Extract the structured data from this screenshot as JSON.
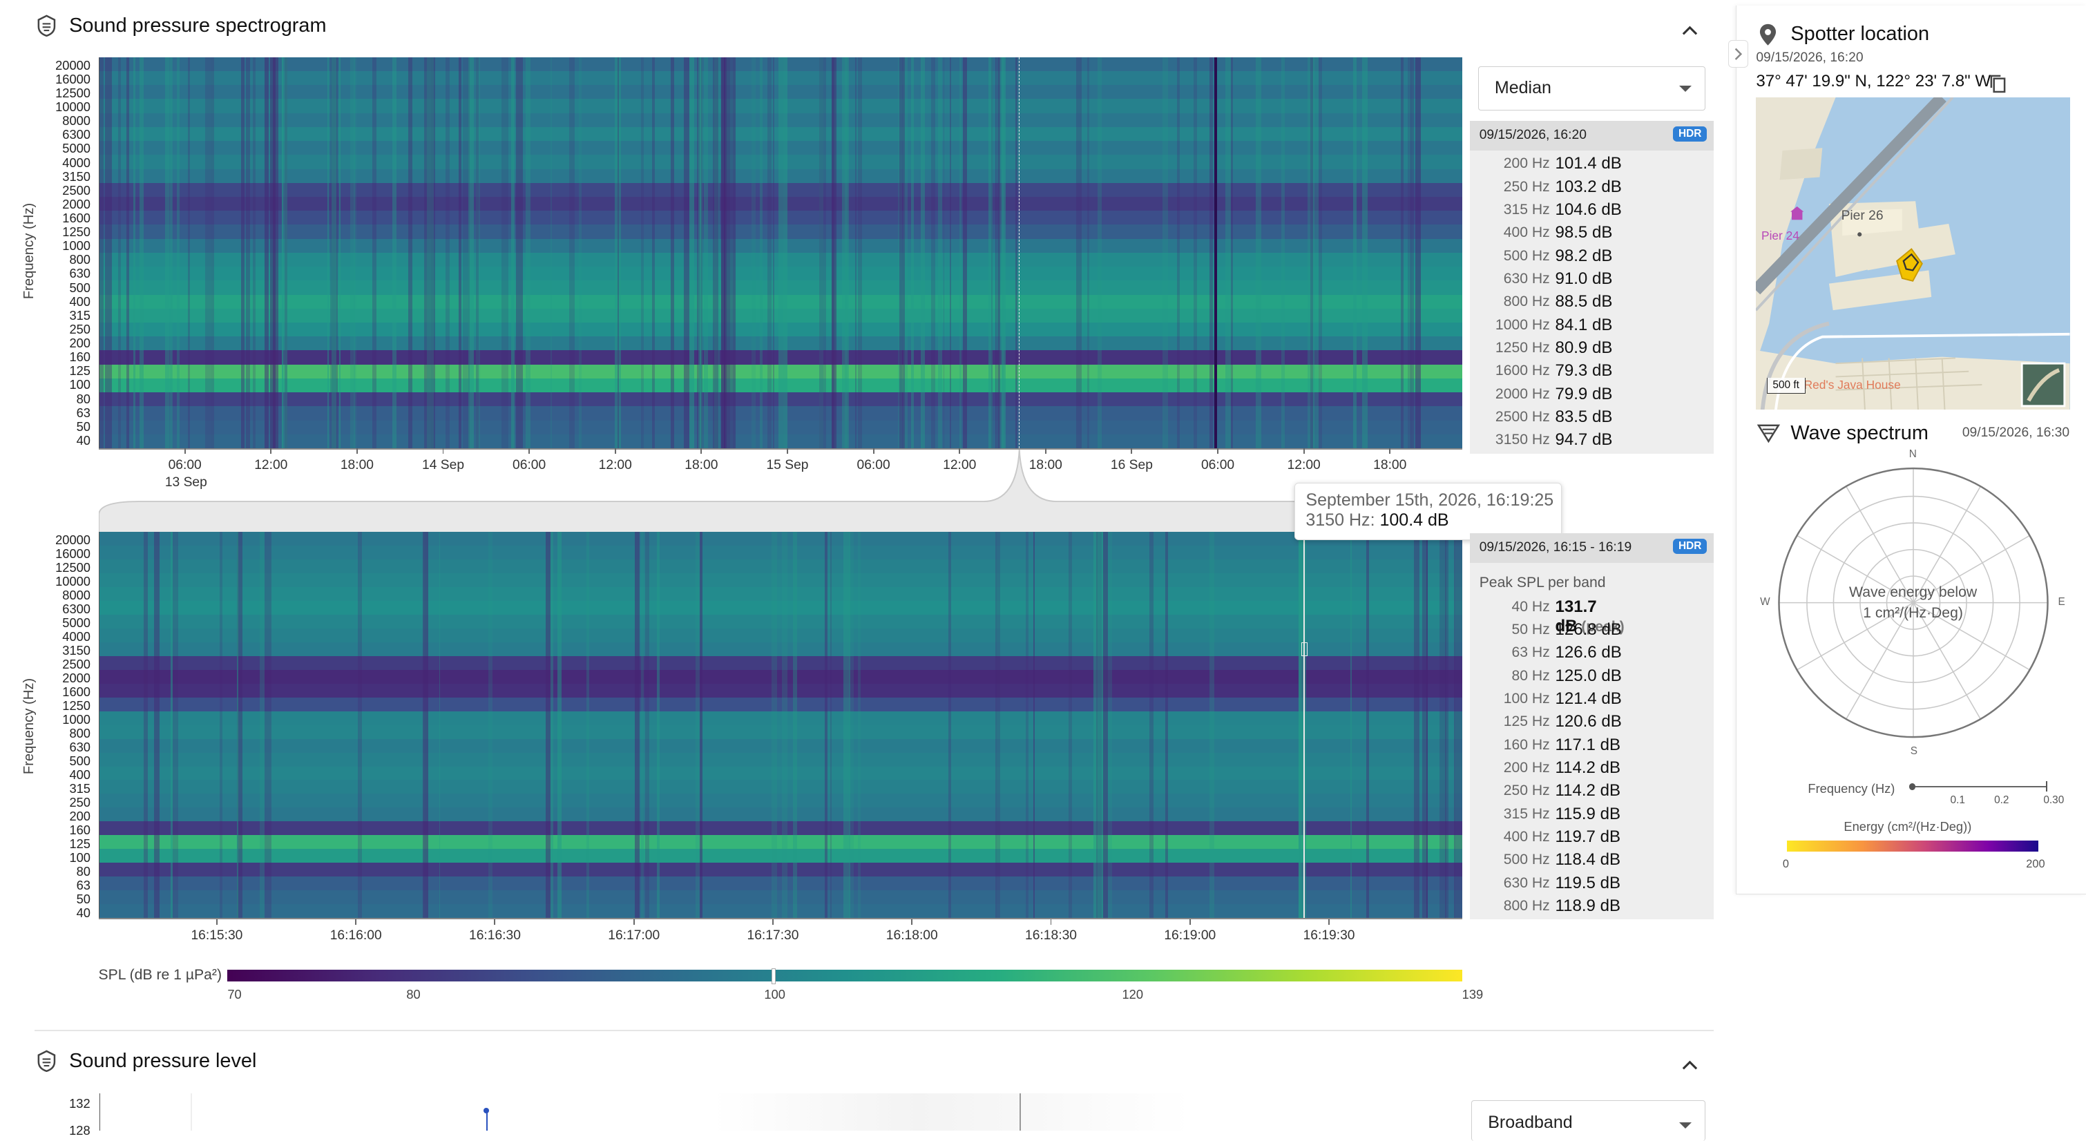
{
  "spectrogram_section": {
    "title": "Sound pressure spectrogram",
    "icon": "hydrophone-icon",
    "collapse_icon": "chevron-up-icon"
  },
  "frequency_axis_label": "Frequency (Hz)",
  "frequency_ticks": [
    "20000",
    "16000",
    "12500",
    "10000",
    "8000",
    "6300",
    "5000",
    "4000",
    "3150",
    "2500",
    "2000",
    "1600",
    "1250",
    "1000",
    "800",
    "630",
    "500",
    "400",
    "315",
    "250",
    "200",
    "160",
    "125",
    "100",
    "80",
    "63",
    "50",
    "40"
  ],
  "overview_x_ticks": [
    "06:00",
    "12:00",
    "18:00",
    "14 Sep",
    "06:00",
    "12:00",
    "18:00",
    "15 Sep",
    "06:00",
    "12:00",
    "18:00",
    "16 Sep",
    "06:00",
    "12:00",
    "18:00"
  ],
  "overview_x_sub": "13 Sep",
  "detail_x_ticks": [
    "16:15:30",
    "16:16:00",
    "16:16:30",
    "16:17:00",
    "16:17:30",
    "16:18:00",
    "16:18:30",
    "16:19:00",
    "16:19:30"
  ],
  "statistic_select": {
    "value": "Median"
  },
  "overview_panel": {
    "timestamp": "09/15/2026, 16:20",
    "badge": "HDR",
    "rows": [
      {
        "hz": "200 Hz",
        "db": "101.4 dB"
      },
      {
        "hz": "250 Hz",
        "db": "103.2 dB"
      },
      {
        "hz": "315 Hz",
        "db": "104.6 dB"
      },
      {
        "hz": "400 Hz",
        "db": "98.5 dB"
      },
      {
        "hz": "500 Hz",
        "db": "98.2 dB"
      },
      {
        "hz": "630 Hz",
        "db": "91.0 dB"
      },
      {
        "hz": "800 Hz",
        "db": "88.5 dB"
      },
      {
        "hz": "1000 Hz",
        "db": "84.1 dB"
      },
      {
        "hz": "1250 Hz",
        "db": "80.9 dB"
      },
      {
        "hz": "1600 Hz",
        "db": "79.3 dB"
      },
      {
        "hz": "2000 Hz",
        "db": "79.9 dB"
      },
      {
        "hz": "2500 Hz",
        "db": "83.5 dB"
      },
      {
        "hz": "3150 Hz",
        "db": "94.7 dB"
      }
    ]
  },
  "tooltip": {
    "date": "September 15th, 2026, 16:19:25",
    "band": "3150 Hz:",
    "value": "100.4 dB"
  },
  "detail_panel": {
    "timestamp": "09/15/2026, 16:15 - 16:19",
    "badge": "HDR",
    "subtitle": "Peak SPL per band",
    "peak_note": "(peak)",
    "rows": [
      {
        "hz": "40 Hz",
        "db": "131.7 dB"
      },
      {
        "hz": "50 Hz",
        "db": "126.8 dB"
      },
      {
        "hz": "63 Hz",
        "db": "126.6 dB"
      },
      {
        "hz": "80 Hz",
        "db": "125.0 dB"
      },
      {
        "hz": "100 Hz",
        "db": "121.4 dB"
      },
      {
        "hz": "125 Hz",
        "db": "120.6 dB"
      },
      {
        "hz": "160 Hz",
        "db": "117.1 dB"
      },
      {
        "hz": "200 Hz",
        "db": "114.2 dB"
      },
      {
        "hz": "250 Hz",
        "db": "114.2 dB"
      },
      {
        "hz": "315 Hz",
        "db": "115.9 dB"
      },
      {
        "hz": "400 Hz",
        "db": "119.7 dB"
      },
      {
        "hz": "500 Hz",
        "db": "118.4 dB"
      },
      {
        "hz": "630 Hz",
        "db": "119.5 dB"
      },
      {
        "hz": "800 Hz",
        "db": "118.9 dB"
      }
    ]
  },
  "colorbar": {
    "label": "SPL (dB re 1 µPa²)",
    "ticks": [
      {
        "v": 70,
        "t": "70"
      },
      {
        "v": 80,
        "t": "80"
      },
      {
        "v": 100,
        "t": "100"
      },
      {
        "v": 120,
        "t": "120"
      },
      {
        "v": 139,
        "t": "139"
      }
    ],
    "min": 70,
    "max": 139,
    "marker": 100.4
  },
  "spl_section": {
    "title": "Sound pressure level",
    "icon": "hydrophone-icon",
    "collapse_icon": "chevron-up-icon",
    "y_ticks": [
      "132",
      "128"
    ],
    "select_value": "Broadband"
  },
  "spotter": {
    "title": "Spotter location",
    "timestamp": "09/15/2026, 16:20",
    "coords": "37° 47' 19.9\" N, 122° 23' 7.8\" W",
    "map_labels": {
      "pier26": "Pier 26",
      "pier24": "Pier 24",
      "scale": "500 ft",
      "poi": "Red's Java House"
    }
  },
  "wave": {
    "title": "Wave spectrum",
    "timestamp": "09/15/2026, 16:30",
    "compass": {
      "n": "N",
      "e": "E",
      "s": "S",
      "w": "W"
    },
    "center_text_1": "Wave energy below",
    "center_text_2": "1 cm²/(Hz·Deg)",
    "freq_label": "Frequency (Hz)",
    "freq_ticks": [
      "0.1",
      "0.2",
      "0.30"
    ],
    "energy_label": "Energy (cm²/(Hz·Deg))",
    "energy_min": "0",
    "energy_max": "200",
    "colors": {
      "low": "#fde725",
      "high": "#1a0a8c"
    }
  }
}
